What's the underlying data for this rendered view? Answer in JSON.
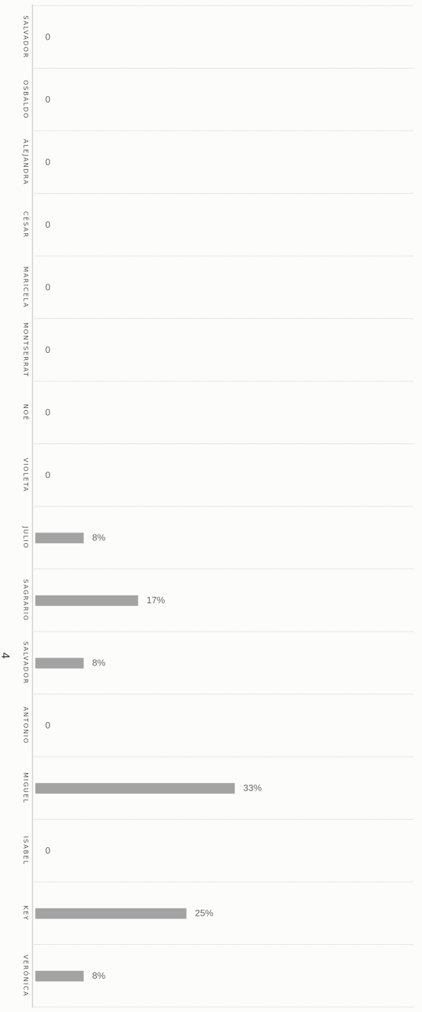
{
  "page_number": "4",
  "chart_data": {
    "type": "bar",
    "orientation": "horizontal",
    "value_unit": "%",
    "categories": [
      "SALVADOR",
      "OSBALDO",
      "ALEJANDRA",
      "CÉSAR",
      "MARICELA",
      "MONTSERRAT",
      "NOÉ",
      "VIOLETA",
      "JULIO",
      "SAGRARIO",
      "SALVADOR",
      "ANTONIO",
      "MIGUEL",
      "ISABEL",
      "KEY",
      "VERÓNICA"
    ],
    "values": [
      0,
      0,
      0,
      0,
      0,
      0,
      0,
      0,
      8,
      17,
      8,
      0,
      33,
      0,
      25,
      8
    ],
    "data_labels": [
      "0",
      "0",
      "0",
      "0",
      "0",
      "0",
      "0",
      "0",
      "8%",
      "17%",
      "8%",
      "0",
      "33%",
      "0",
      "25%",
      "8%"
    ],
    "xlim": [
      0,
      100
    ],
    "grid": true,
    "bar_color": "#a3a3a3"
  }
}
